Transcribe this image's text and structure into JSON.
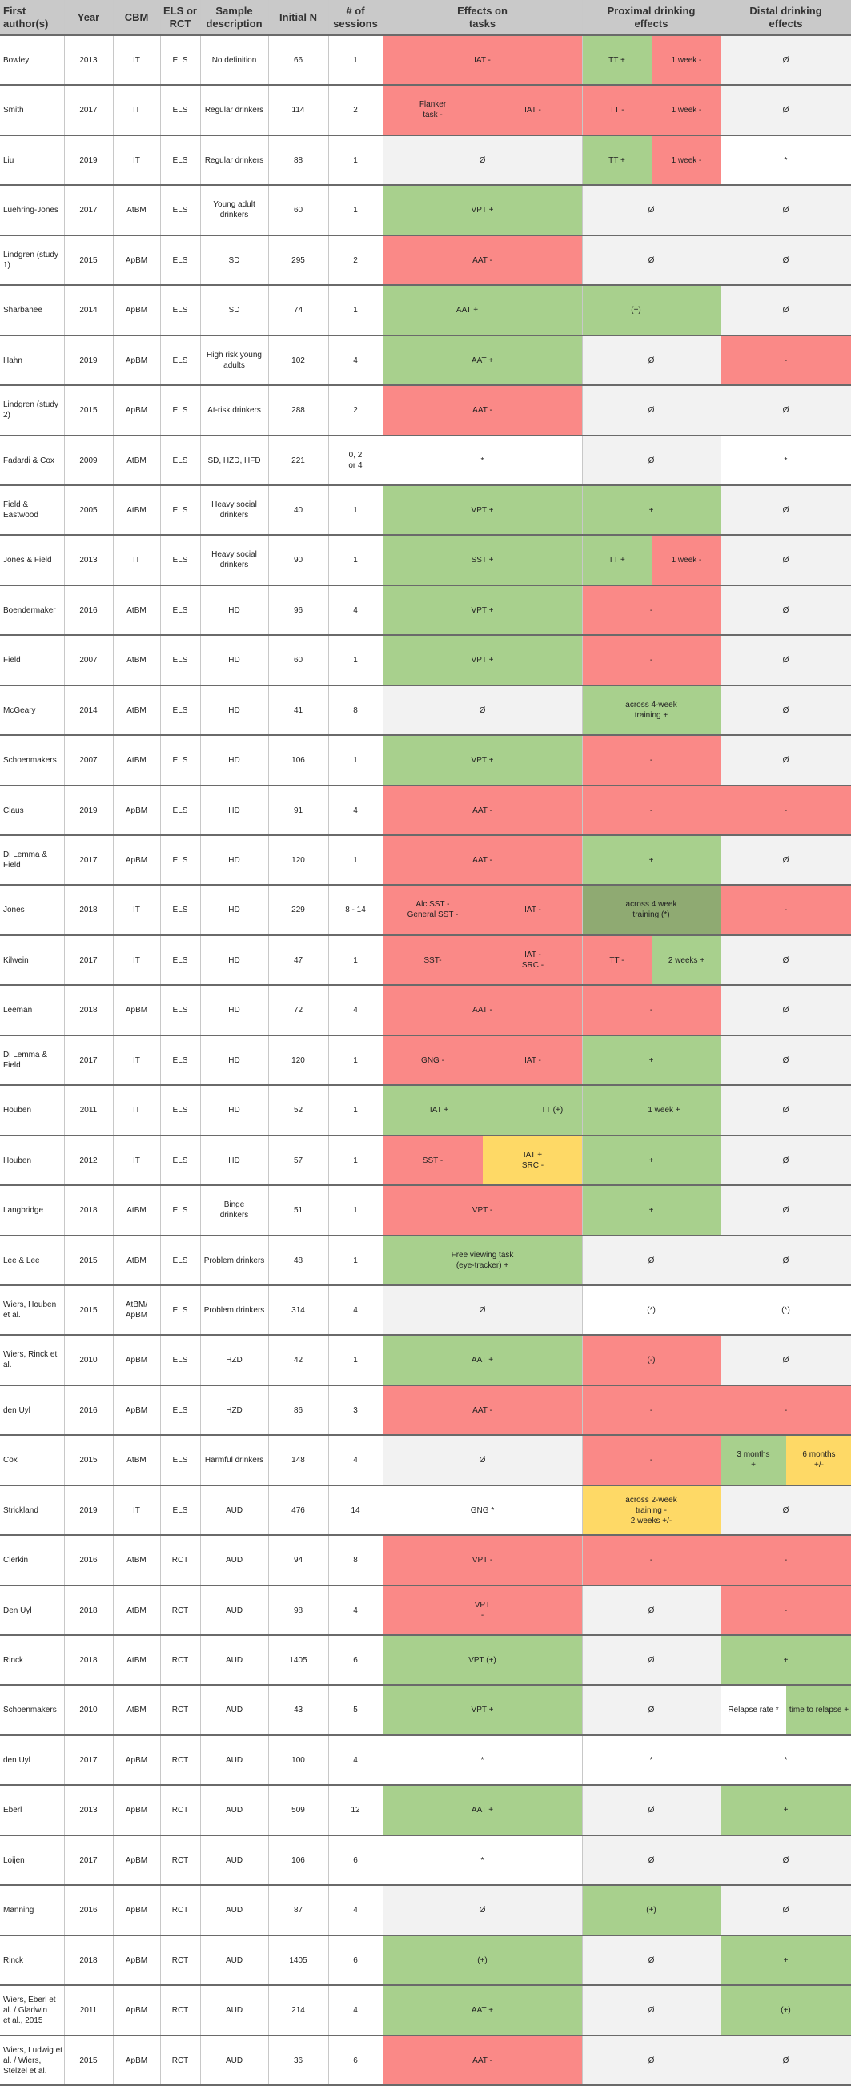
{
  "headers": [
    "First\nauthor(s)",
    "Year",
    "CBM",
    "ELS or\nRCT",
    "Sample\ndescription",
    "Initial N",
    "# of\nsessions",
    "Effects on\ntasks",
    "Proximal drinking\neffects",
    "Distal drinking\neffects"
  ],
  "rows": [
    {
      "info": [
        "Bowley",
        "2013",
        "IT",
        "ELS",
        "No definition",
        "66",
        "1"
      ],
      "t": [
        {
          "x": "IAT -",
          "c": "red"
        }
      ],
      "p": [
        {
          "x": "TT +",
          "c": "green"
        },
        {
          "x": "1 week -",
          "c": "red"
        }
      ],
      "d": [
        {
          "x": "Ø",
          "c": "gray"
        }
      ]
    },
    {
      "info": [
        "Smith",
        "2017",
        "IT",
        "ELS",
        "Regular drinkers",
        "114",
        "2"
      ],
      "t": [
        {
          "x": "Flanker\ntask -",
          "c": "red"
        },
        {
          "x": "IAT -",
          "c": "red"
        }
      ],
      "p": [
        {
          "x": "TT -",
          "c": "red"
        },
        {
          "x": "1 week -",
          "c": "red"
        }
      ],
      "d": [
        {
          "x": "Ø",
          "c": "gray"
        }
      ]
    },
    {
      "info": [
        "Liu",
        "2019",
        "IT",
        "ELS",
        "Regular drinkers",
        "88",
        "1"
      ],
      "t": [
        {
          "x": "Ø",
          "c": "gray"
        }
      ],
      "p": [
        {
          "x": "TT +",
          "c": "green"
        },
        {
          "x": "1 week -",
          "c": "red"
        }
      ],
      "d": [
        {
          "x": "*",
          "c": "white"
        }
      ]
    },
    {
      "info": [
        "Luehring-Jones",
        "2017",
        "AtBM",
        "ELS",
        "Young adult\ndrinkers",
        "60",
        "1"
      ],
      "t": [
        {
          "x": "VPT +",
          "c": "green"
        }
      ],
      "p": [
        {
          "x": "Ø",
          "c": "gray"
        }
      ],
      "d": [
        {
          "x": "Ø",
          "c": "gray"
        }
      ]
    },
    {
      "info": [
        "Lindgren (study 1)",
        "2015",
        "ApBM",
        "ELS",
        "SD",
        "295",
        "2"
      ],
      "t": [
        {
          "x": "AAT -",
          "c": "red"
        }
      ],
      "p": [
        {
          "x": "Ø",
          "c": "gray"
        }
      ],
      "d": [
        {
          "x": "Ø",
          "c": "gray"
        }
      ]
    },
    {
      "info": [
        "Sharbanee",
        "2014",
        "ApBM",
        "ELS",
        "SD",
        "74",
        "1"
      ],
      "tp": [
        {
          "x": "AAT +",
          "c": "green"
        },
        {
          "x": "(+)",
          "c": "green"
        }
      ],
      "d": [
        {
          "x": "Ø",
          "c": "gray"
        }
      ]
    },
    {
      "info": [
        "Hahn",
        "2019",
        "ApBM",
        "ELS",
        "High risk young\nadults",
        "102",
        "4"
      ],
      "t": [
        {
          "x": "AAT +",
          "c": "green"
        }
      ],
      "p": [
        {
          "x": "Ø",
          "c": "gray"
        }
      ],
      "d": [
        {
          "x": "-",
          "c": "red"
        }
      ]
    },
    {
      "info": [
        "Lindgren (study 2)",
        "2015",
        "ApBM",
        "ELS",
        "At-risk drinkers",
        "288",
        "2"
      ],
      "t": [
        {
          "x": "AAT -",
          "c": "red"
        }
      ],
      "p": [
        {
          "x": "Ø",
          "c": "gray"
        }
      ],
      "d": [
        {
          "x": "Ø",
          "c": "gray"
        }
      ]
    },
    {
      "info": [
        "Fadardi & Cox",
        "2009",
        "AtBM",
        "ELS",
        "SD, HZD, HFD",
        "221",
        "0, 2\nor 4"
      ],
      "t": [
        {
          "x": "*",
          "c": "white"
        }
      ],
      "p": [
        {
          "x": "Ø",
          "c": "gray"
        }
      ],
      "d": [
        {
          "x": "*",
          "c": "white"
        }
      ]
    },
    {
      "info": [
        "Field & Eastwood",
        "2005",
        "AtBM",
        "ELS",
        "Heavy social\ndrinkers",
        "40",
        "1"
      ],
      "t": [
        {
          "x": "VPT +",
          "c": "green"
        }
      ],
      "p": [
        {
          "x": "+",
          "c": "green"
        }
      ],
      "d": [
        {
          "x": "Ø",
          "c": "gray"
        }
      ]
    },
    {
      "info": [
        "Jones & Field",
        "2013",
        "IT",
        "ELS",
        "Heavy social\ndrinkers",
        "90",
        "1"
      ],
      "t": [
        {
          "x": "SST +",
          "c": "green"
        }
      ],
      "p": [
        {
          "x": "TT +",
          "c": "green"
        },
        {
          "x": "1 week -",
          "c": "red"
        }
      ],
      "d": [
        {
          "x": "Ø",
          "c": "gray"
        }
      ]
    },
    {
      "info": [
        "Boendermaker",
        "2016",
        "AtBM",
        "ELS",
        "HD",
        "96",
        "4"
      ],
      "t": [
        {
          "x": "VPT +",
          "c": "green"
        }
      ],
      "p": [
        {
          "x": "-",
          "c": "red"
        }
      ],
      "d": [
        {
          "x": "Ø",
          "c": "gray"
        }
      ]
    },
    {
      "info": [
        "Field",
        "2007",
        "AtBM",
        "ELS",
        "HD",
        "60",
        "1"
      ],
      "t": [
        {
          "x": "VPT +",
          "c": "green"
        }
      ],
      "p": [
        {
          "x": "-",
          "c": "red"
        }
      ],
      "d": [
        {
          "x": "Ø",
          "c": "gray"
        }
      ]
    },
    {
      "info": [
        "McGeary",
        "2014",
        "AtBM",
        "ELS",
        "HD",
        "41",
        "8"
      ],
      "t": [
        {
          "x": "Ø",
          "c": "gray"
        }
      ],
      "p": [
        {
          "x": "across 4-week\ntraining +",
          "c": "green"
        }
      ],
      "d": [
        {
          "x": "Ø",
          "c": "gray"
        }
      ]
    },
    {
      "info": [
        "Schoenmakers",
        "2007",
        "AtBM",
        "ELS",
        "HD",
        "106",
        "1"
      ],
      "t": [
        {
          "x": "VPT +",
          "c": "green"
        }
      ],
      "p": [
        {
          "x": "-",
          "c": "red"
        }
      ],
      "d": [
        {
          "x": "Ø",
          "c": "gray"
        }
      ]
    },
    {
      "info": [
        "Claus",
        "2019",
        "ApBM",
        "ELS",
        "HD",
        "91",
        "4"
      ],
      "t": [
        {
          "x": "AAT -",
          "c": "red"
        }
      ],
      "p": [
        {
          "x": "-",
          "c": "red"
        }
      ],
      "d": [
        {
          "x": "-",
          "c": "red"
        }
      ]
    },
    {
      "info": [
        "Di Lemma & Field",
        "2017",
        "ApBM",
        "ELS",
        "HD",
        "120",
        "1"
      ],
      "t": [
        {
          "x": "AAT -",
          "c": "red"
        }
      ],
      "p": [
        {
          "x": "+",
          "c": "green"
        }
      ],
      "d": [
        {
          "x": "Ø",
          "c": "gray"
        }
      ]
    },
    {
      "info": [
        "Jones",
        "2018",
        "IT",
        "ELS",
        "HD",
        "229",
        "8 - 14"
      ],
      "t": [
        {
          "x": "Alc SST -\nGeneral SST -",
          "c": "red"
        },
        {
          "x": "IAT -",
          "c": "red"
        }
      ],
      "p": [
        {
          "x": "across 4 week\ntraining (*)",
          "c": "dgreen"
        }
      ],
      "d": [
        {
          "x": "-",
          "c": "red"
        }
      ]
    },
    {
      "info": [
        "Kilwein",
        "2017",
        "IT",
        "ELS",
        "HD",
        "47",
        "1"
      ],
      "t": [
        {
          "x": "SST-",
          "c": "red"
        },
        {
          "x": "IAT -\nSRC -",
          "c": "red"
        }
      ],
      "p": [
        {
          "x": "TT -",
          "c": "red"
        },
        {
          "x": "2 weeks +",
          "c": "green"
        }
      ],
      "d": [
        {
          "x": "Ø",
          "c": "gray"
        }
      ]
    },
    {
      "info": [
        "Leeman",
        "2018",
        "ApBM",
        "ELS",
        "HD",
        "72",
        "4"
      ],
      "t": [
        {
          "x": "AAT -",
          "c": "red"
        }
      ],
      "p": [
        {
          "x": "-",
          "c": "red"
        }
      ],
      "d": [
        {
          "x": "Ø",
          "c": "gray"
        }
      ]
    },
    {
      "info": [
        "Di Lemma & Field",
        "2017",
        "IT",
        "ELS",
        "HD",
        "120",
        "1"
      ],
      "t": [
        {
          "x": "GNG -",
          "c": "red"
        },
        {
          "x": "IAT -",
          "c": "red"
        }
      ],
      "p": [
        {
          "x": "+",
          "c": "green"
        }
      ],
      "d": [
        {
          "x": "Ø",
          "c": "gray"
        }
      ]
    },
    {
      "info": [
        "Houben",
        "2011",
        "IT",
        "ELS",
        "HD",
        "52",
        "1"
      ],
      "tp": [
        {
          "x": "IAT +",
          "c": "green"
        },
        {
          "x": "TT (+)",
          "c": "green"
        },
        {
          "x": "1 week +",
          "c": "green"
        }
      ],
      "d": [
        {
          "x": "Ø",
          "c": "gray"
        }
      ]
    },
    {
      "info": [
        "Houben",
        "2012",
        "IT",
        "ELS",
        "HD",
        "57",
        "1"
      ],
      "t": [
        {
          "x": "SST -",
          "c": "red"
        },
        {
          "x": "IAT +\nSRC -",
          "c": "yellow"
        }
      ],
      "p": [
        {
          "x": "+",
          "c": "green"
        }
      ],
      "d": [
        {
          "x": "Ø",
          "c": "gray"
        }
      ]
    },
    {
      "info": [
        "Langbridge",
        "2018",
        "AtBM",
        "ELS",
        "Binge\ndrinkers",
        "51",
        "1"
      ],
      "t": [
        {
          "x": "VPT -",
          "c": "red"
        }
      ],
      "p": [
        {
          "x": "+",
          "c": "green"
        }
      ],
      "d": [
        {
          "x": "Ø",
          "c": "gray"
        }
      ]
    },
    {
      "info": [
        "Lee & Lee",
        "2015",
        "AtBM",
        "ELS",
        "Problem drinkers",
        "48",
        "1"
      ],
      "t": [
        {
          "x": "Free viewing task\n(eye-tracker) +",
          "c": "green"
        }
      ],
      "p": [
        {
          "x": "Ø",
          "c": "gray"
        }
      ],
      "d": [
        {
          "x": "Ø",
          "c": "gray"
        }
      ]
    },
    {
      "info": [
        "Wiers, Houben et al.",
        "2015",
        "AtBM/\nApBM",
        "ELS",
        "Problem drinkers",
        "314",
        "4"
      ],
      "t": [
        {
          "x": "Ø",
          "c": "gray"
        }
      ],
      "p": [
        {
          "x": "(*)",
          "c": "white"
        }
      ],
      "d": [
        {
          "x": "(*)",
          "c": "white"
        }
      ]
    },
    {
      "info": [
        "Wiers, Rinck et al.",
        "2010",
        "ApBM",
        "ELS",
        "HZD",
        "42",
        "1"
      ],
      "t": [
        {
          "x": "AAT +",
          "c": "green"
        }
      ],
      "p": [
        {
          "x": "(-)",
          "c": "red"
        }
      ],
      "d": [
        {
          "x": "Ø",
          "c": "gray"
        }
      ]
    },
    {
      "info": [
        "den Uyl",
        "2016",
        "ApBM",
        "ELS",
        "HZD",
        "86",
        "3"
      ],
      "t": [
        {
          "x": "AAT -",
          "c": "red"
        }
      ],
      "p": [
        {
          "x": "-",
          "c": "red"
        }
      ],
      "d": [
        {
          "x": "-",
          "c": "red"
        }
      ]
    },
    {
      "info": [
        "Cox",
        "2015",
        "AtBM",
        "ELS",
        "Harmful drinkers",
        "148",
        "4"
      ],
      "t": [
        {
          "x": "Ø",
          "c": "gray"
        }
      ],
      "p": [
        {
          "x": "-",
          "c": "red"
        }
      ],
      "d": [
        {
          "x": "3 months\n+",
          "c": "green"
        },
        {
          "x": "6 months\n+/-",
          "c": "yellow"
        }
      ]
    },
    {
      "info": [
        "Strickland",
        "2019",
        "IT",
        "ELS",
        "AUD",
        "476",
        "14"
      ],
      "t": [
        {
          "x": "GNG *",
          "c": "white"
        }
      ],
      "p": [
        {
          "x": "across 2-week\ntraining -\n2 weeks +/-",
          "c": "yellow"
        }
      ],
      "d": [
        {
          "x": "Ø",
          "c": "gray"
        }
      ]
    },
    {
      "info": [
        "Clerkin",
        "2016",
        "AtBM",
        "RCT",
        "AUD",
        "94",
        "8"
      ],
      "t": [
        {
          "x": "VPT -",
          "c": "red"
        }
      ],
      "p": [
        {
          "x": "-",
          "c": "red"
        }
      ],
      "d": [
        {
          "x": "-",
          "c": "red"
        }
      ]
    },
    {
      "info": [
        "Den Uyl",
        "2018",
        "AtBM",
        "RCT",
        "AUD",
        "98",
        "4"
      ],
      "t": [
        {
          "x": "VPT\n-",
          "c": "red"
        }
      ],
      "p": [
        {
          "x": "Ø",
          "c": "gray"
        }
      ],
      "d": [
        {
          "x": "-",
          "c": "red"
        }
      ]
    },
    {
      "info": [
        "Rinck",
        "2018",
        "AtBM",
        "RCT",
        "AUD",
        "1405",
        "6"
      ],
      "t": [
        {
          "x": "VPT (+)",
          "c": "green"
        }
      ],
      "p": [
        {
          "x": "Ø",
          "c": "gray"
        }
      ],
      "d": [
        {
          "x": "+",
          "c": "green"
        }
      ]
    },
    {
      "info": [
        "Schoenmakers",
        "2010",
        "AtBM",
        "RCT",
        "AUD",
        "43",
        "5"
      ],
      "t": [
        {
          "x": "VPT +",
          "c": "green"
        }
      ],
      "p": [
        {
          "x": "Ø",
          "c": "gray"
        }
      ],
      "d": [
        {
          "x": "Relapse rate *",
          "c": "white"
        },
        {
          "x": "time to relapse +",
          "c": "green"
        }
      ]
    },
    {
      "info": [
        "den Uyl",
        "2017",
        "ApBM",
        "RCT",
        "AUD",
        "100",
        "4"
      ],
      "t": [
        {
          "x": "*",
          "c": "white"
        }
      ],
      "p": [
        {
          "x": "*",
          "c": "white"
        }
      ],
      "d": [
        {
          "x": "*",
          "c": "white"
        }
      ]
    },
    {
      "info": [
        "Eberl",
        "2013",
        "ApBM",
        "RCT",
        "AUD",
        "509",
        "12"
      ],
      "t": [
        {
          "x": "AAT +",
          "c": "green"
        }
      ],
      "p": [
        {
          "x": "Ø",
          "c": "gray"
        }
      ],
      "d": [
        {
          "x": "+",
          "c": "green"
        }
      ]
    },
    {
      "info": [
        "Loijen",
        "2017",
        "ApBM",
        "RCT",
        "AUD",
        "106",
        "6"
      ],
      "t": [
        {
          "x": "*",
          "c": "white"
        }
      ],
      "p": [
        {
          "x": "Ø",
          "c": "gray"
        }
      ],
      "d": [
        {
          "x": "Ø",
          "c": "gray"
        }
      ]
    },
    {
      "info": [
        "Manning",
        "2016",
        "ApBM",
        "RCT",
        "AUD",
        "87",
        "4"
      ],
      "t": [
        {
          "x": "Ø",
          "c": "gray"
        }
      ],
      "p": [
        {
          "x": "(+)",
          "c": "green"
        }
      ],
      "d": [
        {
          "x": "Ø",
          "c": "gray"
        }
      ]
    },
    {
      "info": [
        "Rinck",
        "2018",
        "ApBM",
        "RCT",
        "AUD",
        "1405",
        "6"
      ],
      "t": [
        {
          "x": "(+)",
          "c": "green"
        }
      ],
      "p": [
        {
          "x": "Ø",
          "c": "gray"
        }
      ],
      "d": [
        {
          "x": "+",
          "c": "green"
        }
      ]
    },
    {
      "info": [
        "Wiers, Eberl et al. / Gladwin\net al., 2015",
        "2011",
        "ApBM",
        "RCT",
        "AUD",
        "214",
        "4"
      ],
      "t": [
        {
          "x": "AAT +",
          "c": "green"
        }
      ],
      "p": [
        {
          "x": "Ø",
          "c": "gray"
        }
      ],
      "d": [
        {
          "x": "(+)",
          "c": "green"
        }
      ]
    },
    {
      "info": [
        "Wiers, Ludwig et al. / Wiers,\nStelzel et al.",
        "2015",
        "ApBM",
        "RCT",
        "AUD",
        "36",
        "6"
      ],
      "t": [
        {
          "x": "AAT -",
          "c": "red"
        }
      ],
      "p": [
        {
          "x": "Ø",
          "c": "gray"
        }
      ],
      "d": [
        {
          "x": "Ø",
          "c": "gray"
        }
      ]
    }
  ],
  "colors": {
    "red": "#fa8987",
    "green": "#a8d08d",
    "gray": "#f2f2f2",
    "yellow": "#fed966",
    "dgreen": "#8faa72",
    "white": "#ffffff",
    "header": "#c9c9c9"
  }
}
